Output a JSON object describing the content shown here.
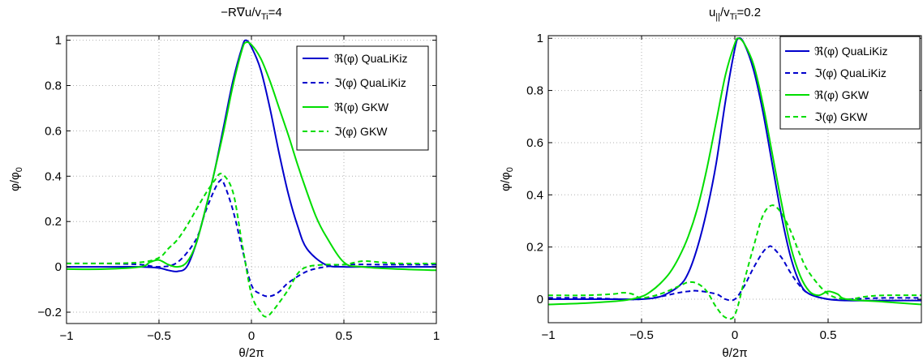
{
  "chart_data": [
    {
      "type": "line",
      "title_main": "−R∇u/v",
      "title_sub": "Ti",
      "title_tail": "=4",
      "xlabel": "θ/2π",
      "ylabel_main": "φ/φ",
      "ylabel_sub": "0",
      "xlim": [
        -1,
        1
      ],
      "ylim": [
        -0.25,
        1.02
      ],
      "xticks": [
        -1,
        -0.5,
        0,
        0.5,
        1
      ],
      "xtick_labels": [
        "−1",
        "−0.5",
        "0",
        "0.5",
        "1"
      ],
      "yticks": [
        -0.2,
        0,
        0.2,
        0.4,
        0.6,
        0.8,
        1
      ],
      "ytick_labels": [
        "−0.2",
        "0",
        "0.2",
        "0.4",
        "0.6",
        "0.8",
        "1"
      ],
      "grid": true,
      "legend_position": "top-right",
      "series": [
        {
          "name": "ℜ(φ) QuaLiKiz",
          "color": "#0000cc",
          "dash": "solid",
          "x": [
            -1,
            -0.8,
            -0.6,
            -0.5,
            -0.45,
            -0.4,
            -0.35,
            -0.3,
            -0.25,
            -0.2,
            -0.15,
            -0.1,
            -0.05,
            -0.03,
            0,
            0.05,
            0.1,
            0.15,
            0.2,
            0.25,
            0.3,
            0.4,
            0.5,
            0.6,
            0.8,
            1
          ],
          "y": [
            0,
            0,
            0,
            -0.005,
            -0.015,
            -0.02,
            0,
            0.1,
            0.25,
            0.42,
            0.62,
            0.82,
            0.97,
            1.0,
            0.97,
            0.87,
            0.7,
            0.5,
            0.32,
            0.18,
            0.08,
            0.01,
            0.0,
            0.0,
            0.0,
            0.0
          ]
        },
        {
          "name": "ℑ(φ) QuaLiKiz",
          "color": "#0000cc",
          "dash": "dash",
          "x": [
            -1,
            -0.8,
            -0.6,
            -0.5,
            -0.4,
            -0.3,
            -0.25,
            -0.2,
            -0.17,
            -0.15,
            -0.1,
            -0.05,
            0,
            0.05,
            0.1,
            0.15,
            0.2,
            0.3,
            0.4,
            0.5,
            0.7,
            1
          ],
          "y": [
            0.015,
            0.015,
            0.01,
            0.0,
            0.02,
            0.12,
            0.24,
            0.34,
            0.38,
            0.37,
            0.25,
            0.08,
            -0.08,
            -0.12,
            -0.13,
            -0.11,
            -0.07,
            -0.02,
            0.0,
            0.01,
            0.01,
            0.01
          ]
        },
        {
          "name": "ℜ(φ) GKW",
          "color": "#00dd00",
          "dash": "solid",
          "x": [
            -1,
            -0.8,
            -0.6,
            -0.55,
            -0.5,
            -0.45,
            -0.4,
            -0.35,
            -0.3,
            -0.25,
            -0.2,
            -0.15,
            -0.1,
            -0.05,
            -0.03,
            0,
            0.05,
            0.1,
            0.15,
            0.2,
            0.25,
            0.3,
            0.35,
            0.4,
            0.5,
            0.6,
            0.8,
            1
          ],
          "y": [
            -0.01,
            -0.01,
            0.0,
            0.02,
            0.03,
            0.01,
            0.0,
            0.02,
            0.1,
            0.25,
            0.42,
            0.6,
            0.8,
            0.96,
            0.99,
            0.98,
            0.92,
            0.82,
            0.7,
            0.58,
            0.45,
            0.33,
            0.22,
            0.14,
            0.02,
            0.0,
            -0.01,
            -0.015
          ]
        },
        {
          "name": "ℑ(φ) GKW",
          "color": "#00dd00",
          "dash": "dash",
          "x": [
            -1,
            -0.8,
            -0.6,
            -0.5,
            -0.45,
            -0.4,
            -0.35,
            -0.3,
            -0.25,
            -0.2,
            -0.16,
            -0.1,
            -0.05,
            0,
            0.05,
            0.08,
            0.12,
            0.2,
            0.25,
            0.3,
            0.4,
            0.5,
            0.6,
            0.7,
            0.8,
            1
          ],
          "y": [
            0.015,
            0.015,
            0.02,
            0.04,
            0.08,
            0.12,
            0.18,
            0.25,
            0.32,
            0.38,
            0.41,
            0.33,
            0.1,
            -0.12,
            -0.2,
            -0.22,
            -0.19,
            -0.1,
            -0.03,
            0.0,
            0.01,
            0.01,
            0.025,
            0.02,
            0.015,
            0.015
          ]
        }
      ]
    },
    {
      "type": "line",
      "title_main": "u",
      "title_sub1": "||",
      "title_mid": "/v",
      "title_sub2": "Ti",
      "title_tail": "=0.2",
      "xlabel": "θ/2π",
      "ylabel_main": "φ/φ",
      "ylabel_sub": "0",
      "xlim": [
        -1,
        1
      ],
      "ylim": [
        -0.09,
        1.01
      ],
      "xticks": [
        -1,
        -0.5,
        0,
        0.5
      ],
      "xtick_labels": [
        "−1",
        "−0.5",
        "0",
        "0.5"
      ],
      "yticks": [
        0,
        0.2,
        0.4,
        0.6,
        0.8,
        1
      ],
      "ytick_labels": [
        "0",
        "0.2",
        "0.4",
        "0.6",
        "0.8",
        "1"
      ],
      "grid": true,
      "legend_position": "top-right",
      "series": [
        {
          "name": "ℜ(φ) QuaLiKiz",
          "color": "#0000cc",
          "dash": "solid",
          "x": [
            -1,
            -0.8,
            -0.6,
            -0.5,
            -0.4,
            -0.3,
            -0.25,
            -0.2,
            -0.15,
            -0.1,
            -0.05,
            0,
            0.02,
            0.05,
            0.1,
            0.15,
            0.2,
            0.25,
            0.3,
            0.35,
            0.4,
            0.5,
            0.6,
            0.8,
            1
          ],
          "y": [
            0,
            0,
            0,
            0,
            0.01,
            0.05,
            0.1,
            0.2,
            0.34,
            0.52,
            0.76,
            0.96,
            1.0,
            0.98,
            0.88,
            0.72,
            0.52,
            0.32,
            0.16,
            0.06,
            0.02,
            0.0,
            -0.005,
            -0.005,
            -0.005
          ]
        },
        {
          "name": "ℑ(φ) QuaLiKiz",
          "color": "#0000cc",
          "dash": "dash",
          "x": [
            -1,
            -0.8,
            -0.6,
            -0.5,
            -0.4,
            -0.3,
            -0.25,
            -0.2,
            -0.1,
            -0.05,
            0,
            0.05,
            0.1,
            0.15,
            0.18,
            0.2,
            0.25,
            0.3,
            0.35,
            0.4,
            0.5,
            0.6,
            0.8,
            1
          ],
          "y": [
            0.005,
            0.005,
            0.0,
            0.0,
            0.01,
            0.025,
            0.03,
            0.032,
            0.02,
            0.0,
            0.0,
            0.05,
            0.12,
            0.18,
            0.2,
            0.2,
            0.16,
            0.1,
            0.05,
            0.02,
            0.0,
            0.0,
            0.005,
            0.005
          ]
        },
        {
          "name": "ℜ(φ) GKW",
          "color": "#00dd00",
          "dash": "solid",
          "x": [
            -1,
            -0.8,
            -0.6,
            -0.5,
            -0.45,
            -0.4,
            -0.35,
            -0.3,
            -0.25,
            -0.2,
            -0.15,
            -0.1,
            -0.05,
            0,
            0.02,
            0.05,
            0.1,
            0.15,
            0.2,
            0.25,
            0.3,
            0.35,
            0.4,
            0.45,
            0.5,
            0.55,
            0.6,
            0.8,
            1
          ],
          "y": [
            -0.02,
            -0.015,
            -0.005,
            0.01,
            0.03,
            0.06,
            0.1,
            0.16,
            0.24,
            0.35,
            0.5,
            0.68,
            0.86,
            0.98,
            1.0,
            0.98,
            0.9,
            0.75,
            0.56,
            0.37,
            0.2,
            0.09,
            0.03,
            0.015,
            0.03,
            0.02,
            0.0,
            -0.01,
            -0.02
          ]
        },
        {
          "name": "ℑ(φ) GKW",
          "color": "#00dd00",
          "dash": "dash",
          "x": [
            -1,
            -0.8,
            -0.65,
            -0.6,
            -0.55,
            -0.5,
            -0.4,
            -0.3,
            -0.25,
            -0.2,
            -0.15,
            -0.1,
            -0.05,
            0,
            0.05,
            0.1,
            0.15,
            0.2,
            0.25,
            0.3,
            0.35,
            0.4,
            0.5,
            0.6,
            0.7,
            0.8,
            1
          ],
          "y": [
            0.015,
            0.015,
            0.02,
            0.025,
            0.02,
            0.005,
            0.02,
            0.05,
            0.065,
            0.06,
            0.03,
            -0.03,
            -0.07,
            -0.06,
            0.07,
            0.2,
            0.32,
            0.36,
            0.33,
            0.26,
            0.17,
            0.1,
            0.02,
            0.0,
            0.01,
            0.015,
            0.015
          ]
        }
      ]
    }
  ]
}
